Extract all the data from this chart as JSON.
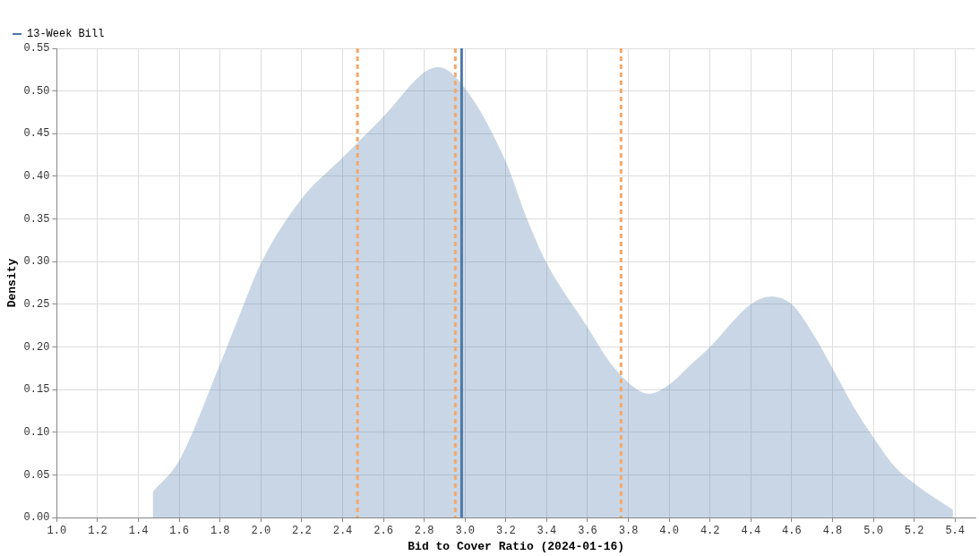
{
  "chart_data": {
    "type": "area",
    "xlabel": "Bid to Cover Ratio (2024-01-16)",
    "ylabel": "Density",
    "x": [
      1.47,
      1.6,
      1.8,
      1.9,
      2.0,
      2.2,
      2.4,
      2.6,
      2.8,
      2.87,
      3.0,
      3.2,
      3.3,
      3.4,
      3.6,
      3.7,
      3.8,
      3.9,
      4.0,
      4.1,
      4.2,
      4.4,
      4.5,
      4.6,
      4.7,
      4.8,
      4.9,
      5.0,
      5.1,
      5.2,
      5.39
    ],
    "series": [
      {
        "name": "13-Week Bill",
        "color": "#4c78a8",
        "values": [
          0.03,
          0.067,
          0.18,
          0.24,
          0.298,
          0.374,
          0.422,
          0.47,
          0.522,
          0.528,
          0.503,
          0.417,
          0.352,
          0.298,
          0.223,
          0.185,
          0.158,
          0.145,
          0.156,
          0.178,
          0.2,
          0.25,
          0.259,
          0.25,
          0.217,
          0.175,
          0.131,
          0.094,
          0.061,
          0.04,
          0.009
        ]
      }
    ],
    "xlim": [
      1.0,
      5.5
    ],
    "xticks": [
      {
        "value": 1.0,
        "label": "1.0"
      },
      1.2,
      1.4,
      1.6,
      1.8,
      {
        "value": 2.0,
        "label": "2.0"
      },
      2.2,
      2.4,
      2.6,
      2.8,
      {
        "value": 3.0,
        "label": "3.0"
      },
      3.2,
      3.4,
      3.6,
      3.8,
      {
        "value": 4.0,
        "label": "4.0"
      },
      4.2,
      4.4,
      4.6,
      4.8,
      {
        "value": 5.0,
        "label": "5.0"
      },
      5.2,
      5.4
    ],
    "ylim": [
      0,
      0.55
    ],
    "yticks": [
      {
        "value": 0,
        "label": "0.00"
      },
      0.05,
      {
        "value": 0.1,
        "label": "0.10"
      },
      0.15,
      {
        "value": 0.2,
        "label": "0.20"
      },
      0.25,
      {
        "value": 0.3,
        "label": "0.30"
      },
      0.35,
      {
        "value": 0.4,
        "label": "0.40"
      },
      0.45,
      {
        "value": 0.5,
        "label": "0.50"
      },
      0.55
    ],
    "ref_lines": [
      {
        "axis": "x",
        "value": 2.473,
        "color": "#f4a86a",
        "line_style": "dashed"
      },
      {
        "axis": "x",
        "value": 2.952,
        "color": "#f4a86a",
        "line_style": "dashed"
      },
      {
        "axis": "x",
        "value": 3.764,
        "color": "#f4a86a",
        "line_style": "dashed"
      },
      {
        "axis": "x",
        "value": 2.983,
        "color": "#4c78a8",
        "line_style": "solid"
      }
    ],
    "grid": true,
    "legend": "top left"
  }
}
